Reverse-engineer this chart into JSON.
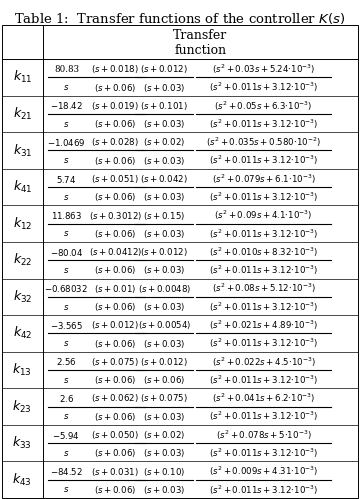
{
  "title": "Table 1:  Transfer functions of the controller $K(s)$",
  "rows": [
    {
      "key": "$k_{11}$",
      "num1": "80.83",
      "den1": "$s$",
      "num2": "$(s+0.018)$",
      "den2": "$(s+0.06)$",
      "num3": "$(s+0.012)$",
      "den3": "$(s+0.03)$",
      "num4": "$(s^2+0.03s+5.24{\\cdot}10^{-3})$",
      "den4": "$(s^2+0.011s+3.12{\\cdot}10^{-3})$"
    },
    {
      "key": "$k_{21}$",
      "num1": "$-18.42$",
      "den1": "$s$",
      "num2": "$(s+0.019)$",
      "den2": "$(s+0.06)$",
      "num3": "$(s+0.101)$",
      "den3": "$(s+0.03)$",
      "num4": "$(s^2+0.05s+6.3{\\cdot}10^{-3})$",
      "den4": "$(s^2+0.011s+3.12{\\cdot}10^{-3})$"
    },
    {
      "key": "$k_{31}$",
      "num1": "$-1.0469$",
      "den1": "$s$",
      "num2": "$(s+0.028)$",
      "den2": "$(s+0.06)$",
      "num3": "$(s+0.02)$",
      "den3": "$(s+0.03)$",
      "num4": "$(s^2+0.035s+0.580{\\cdot}10^{-2})$",
      "den4": "$(s^2+0.011s+3.12{\\cdot}10^{-3})$"
    },
    {
      "key": "$k_{41}$",
      "num1": "$5.74$",
      "den1": "$s$",
      "num2": "$(s+0.051)$",
      "den2": "$(s+0.06)$",
      "num3": "$(s+0.042)$",
      "den3": "$(s+0.03)$",
      "num4": "$(s^2+0.079s+6.1{\\cdot}10^{-3})$",
      "den4": "$(s^2+0.011s+3.12{\\cdot}10^{-3})$"
    },
    {
      "key": "$k_{12}$",
      "num1": "$11.863$",
      "den1": "$s$",
      "num2": "$(s+0.3012)$",
      "den2": "$(s+0.06)$",
      "num3": "$(s+0.15)$",
      "den3": "$(s+0.03)$",
      "num4": "$(s^2+0.09s+4.1{\\cdot}10^{-3})$",
      "den4": "$(s^2+0.011s+3.12{\\cdot}10^{-3})$"
    },
    {
      "key": "$k_{22}$",
      "num1": "$-80.04$",
      "den1": "$s$",
      "num2": "$(s+0.0412)$",
      "den2": "$(s+0.06)$",
      "num3": "$(s+0.012)$",
      "den3": "$(s+0.03)$",
      "num4": "$(s^2+0.010s+8.32{\\cdot}10^{-3})$",
      "den4": "$(s^2+0.011s+3.12{\\cdot}10^{-3})$"
    },
    {
      "key": "$k_{32}$",
      "num1": "$-0.68032$",
      "den1": "$s$",
      "num2": "$(s+0.01)$",
      "den2": "$(s+0.06)$",
      "num3": "$(s+0.0048)$",
      "den3": "$(s+0.03)$",
      "num4": "$(s^2+0.08s+5.12{\\cdot}10^{-3})$",
      "den4": "$(s^2+0.011s+3.12{\\cdot}10^{-3})$"
    },
    {
      "key": "$k_{42}$",
      "num1": "$-3.565$",
      "den1": "$s$",
      "num2": "$(s+0.012)$",
      "den2": "$(s+0.06)$",
      "num3": "$(s+0.0054)$",
      "den3": "$(s+0.03)$",
      "num4": "$(s^2+0.021s+4.89{\\cdot}10^{-3})$",
      "den4": "$(s^2+0.011s+3.12{\\cdot}10^{-3})$"
    },
    {
      "key": "$k_{13}$",
      "num1": "$2.56$",
      "den1": "$s$",
      "num2": "$(s+0.075)$",
      "den2": "$(s+0.06)$",
      "num3": "$(s+0.012)$",
      "den3": "$(s+0.06)$",
      "num4": "$(s^2+0.022s+4.5{\\cdot}10^{-3})$",
      "den4": "$(s^2+0.011s+3.12{\\cdot}10^{-3})$"
    },
    {
      "key": "$k_{23}$",
      "num1": "$2.6$",
      "den1": "$s$",
      "num2": "$(s+0.062)$",
      "den2": "$(s+0.06)$",
      "num3": "$(s+0.075)$",
      "den3": "$(s+0.03)$",
      "num4": "$(s^2+0.041s+6.2{\\cdot}10^{-3})$",
      "den4": "$(s^2+0.011s+3.12{\\cdot}10^{-3})$"
    },
    {
      "key": "$k_{33}$",
      "num1": "$-5.94$",
      "den1": "$s$",
      "num2": "$(s+0.050)$",
      "den2": "$(s+0.06)$",
      "num3": "$(s+0.02)$",
      "den3": "$(s+0.03)$",
      "num4": "$(s^2+0.078s+5{\\cdot}10^{-3})$",
      "den4": "$(s^2+0.011s+3.12{\\cdot}10^{-3})$"
    },
    {
      "key": "$k_{43}$",
      "num1": "$-84.52$",
      "den1": "$s$",
      "num2": "$(s+0.031)$",
      "den2": "$(s+0.06)$",
      "num3": "$(s+0.10)$",
      "den3": "$(s+0.03)$",
      "num4": "$(s^2+0.009s+4.31{\\cdot}10^{-3})$",
      "den4": "$(s^2+0.011s+3.12{\\cdot}10^{-3})$"
    }
  ],
  "bg_color": "#ffffff",
  "line_color": "#000000",
  "title_fontsize": 9.5,
  "key_fontsize": 9,
  "tf_fontsize": 6.2,
  "header_fontsize": 9
}
